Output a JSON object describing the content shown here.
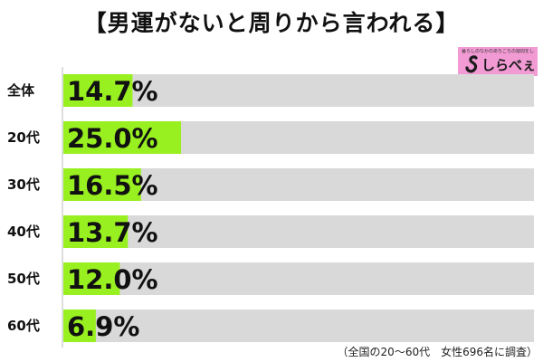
{
  "title": "【男運がないと周りから言われる】",
  "logo": {
    "tagline": "暮らしのなかのあちこちの疑問をしらべる",
    "wordmark": "しらべぇ",
    "icon": "swan-logo-icon",
    "color": "#f19ad3"
  },
  "footnote": "（全国の20〜60代　女性696名に調査）",
  "colors": {
    "bar": "#99f020",
    "track": "#d9d9d9"
  },
  "chart_data": {
    "type": "bar",
    "orientation": "horizontal",
    "categories": [
      "全体",
      "20代",
      "30代",
      "40代",
      "50代",
      "60代"
    ],
    "values": [
      14.7,
      25.0,
      16.5,
      13.7,
      12.0,
      6.9
    ],
    "value_labels": [
      "14.7%",
      "25.0%",
      "16.5%",
      "13.7%",
      "12.0%",
      "6.9%"
    ],
    "unit": "%",
    "xlim": [
      0,
      100
    ],
    "grid": false,
    "legend": "none"
  }
}
